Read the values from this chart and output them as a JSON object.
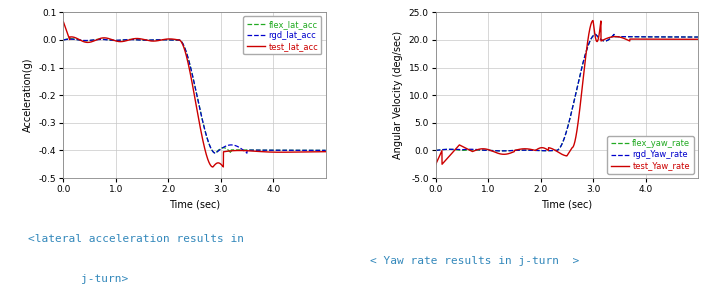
{
  "fig_width": 7.05,
  "fig_height": 3.07,
  "dpi": 100,
  "plot1": {
    "xlabel": "Time (sec)",
    "ylabel": "Acceleration(g)",
    "xlim": [
      0.0,
      5.0
    ],
    "ylim": [
      -0.5,
      0.1
    ],
    "yticks": [
      0.1,
      0.0,
      -0.1,
      -0.2,
      -0.3,
      -0.4,
      -0.5
    ],
    "xticks": [
      0.0,
      1.0,
      2.0,
      3.0,
      4.0
    ],
    "legend_labels": [
      "flex_lat_acc",
      "rgd_lat_acc",
      "test_lat_acc"
    ],
    "legend_colors": [
      "#22aa22",
      "#0000cc",
      "#cc0000"
    ],
    "legend_styles": [
      "--",
      "--",
      "-"
    ],
    "caption_line1": "<lateral acceleration results in",
    "caption_line2": "j-turn>",
    "caption_color": "#3388bb"
  },
  "plot2": {
    "xlabel": "Time (sec)",
    "ylabel": "Angular Velocity (deg/sec)",
    "xlim": [
      0.0,
      5.0
    ],
    "ylim": [
      -5.0,
      25.0
    ],
    "yticks": [
      -5.0,
      0.0,
      5.0,
      10.0,
      15.0,
      20.0,
      25.0
    ],
    "xticks": [
      0.0,
      1.0,
      2.0,
      3.0,
      4.0
    ],
    "legend_labels": [
      "flex_yaw_rate",
      "rgd_Yaw_rate",
      "test_Yaw_rate"
    ],
    "legend_colors": [
      "#22aa22",
      "#0000cc",
      "#cc0000"
    ],
    "legend_styles": [
      "--",
      "--",
      "-"
    ],
    "caption_line1": "< Yaw rate results in j-turn  >",
    "caption_color": "#3388bb"
  }
}
